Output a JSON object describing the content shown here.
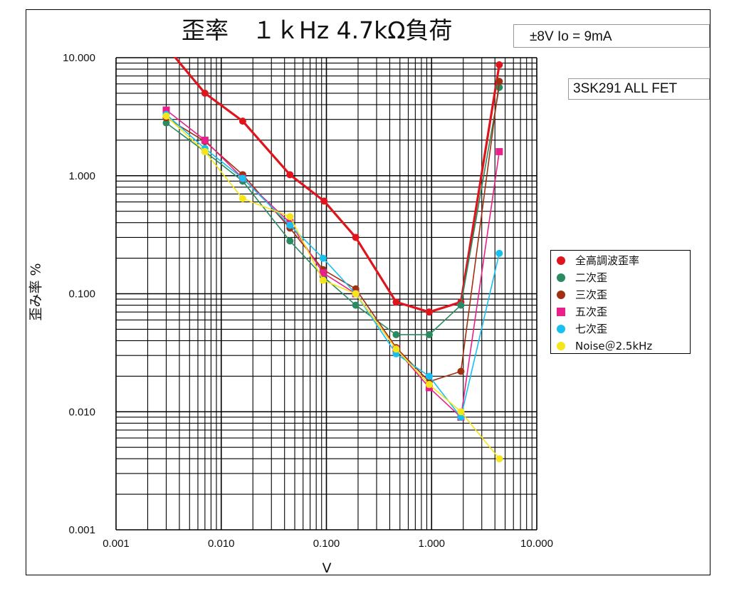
{
  "title": "歪率　１ｋHz 4.7kΩ負荷",
  "condition_label": "±8V  Io = 9mA",
  "device_label": "3SK291 ALL FET",
  "chart_data": {
    "type": "line",
    "title": "歪率　１ｋHz 4.7kΩ負荷",
    "xlabel": "V",
    "ylabel": "歪み率 %",
    "x_scale": "log",
    "y_scale": "log",
    "xlim": [
      0.001,
      10
    ],
    "ylim": [
      0.001,
      10
    ],
    "grid": true,
    "legend_position": "right",
    "x_ticks": [
      "0.001",
      "0.010",
      "0.100",
      "1.000",
      "10.000"
    ],
    "y_ticks": [
      "10.000",
      "1.000",
      "0.100",
      "0.010",
      "0.001"
    ],
    "series": [
      {
        "name": "全高調波歪率",
        "color": "#e0141c",
        "marker": "circle",
        "thick": true,
        "x": [
          0.0035,
          0.007,
          0.016,
          0.045,
          0.095,
          0.19,
          0.46,
          0.95,
          1.9,
          4.4
        ],
        "y": [
          10.5,
          5.0,
          2.9,
          1.02,
          0.61,
          0.3,
          0.085,
          0.07,
          0.085,
          8.7
        ]
      },
      {
        "name": "二次歪",
        "color": "#2a8a60",
        "marker": "circle",
        "x": [
          0.003,
          0.007,
          0.016,
          0.045,
          0.093,
          0.19,
          0.46,
          0.95,
          1.9,
          4.4
        ],
        "y": [
          2.8,
          1.6,
          0.9,
          0.28,
          0.14,
          0.08,
          0.045,
          0.045,
          0.08,
          5.6
        ]
      },
      {
        "name": "三次歪",
        "color": "#a03010",
        "marker": "circle",
        "x": [
          0.003,
          0.007,
          0.016,
          0.045,
          0.093,
          0.19,
          0.46,
          0.95,
          1.9,
          4.4
        ],
        "y": [
          3.1,
          1.95,
          1.02,
          0.36,
          0.16,
          0.11,
          0.035,
          0.018,
          0.022,
          6.3
        ]
      },
      {
        "name": "五次歪",
        "color": "#e8218a",
        "marker": "square",
        "x": [
          0.003,
          0.007,
          0.016,
          0.045,
          0.093,
          0.19,
          0.46,
          0.95,
          1.9,
          4.4
        ],
        "y": [
          3.6,
          2.0,
          0.95,
          0.4,
          0.15,
          0.1,
          0.034,
          0.016,
          0.009,
          1.6
        ]
      },
      {
        "name": "七次歪",
        "color": "#18c0f0",
        "marker": "circle",
        "x": [
          0.003,
          0.007,
          0.016,
          0.045,
          0.093,
          0.19,
          0.46,
          0.95,
          1.9,
          4.4
        ],
        "y": [
          3.3,
          1.7,
          0.95,
          0.38,
          0.2,
          0.1,
          0.031,
          0.02,
          0.009,
          0.22
        ]
      },
      {
        "name": "Noise＠2.5kHz",
        "color": "#f5e61a",
        "marker": "circle",
        "x": [
          0.003,
          0.007,
          0.016,
          0.045,
          0.093,
          0.19,
          0.46,
          0.95,
          1.9,
          4.4
        ],
        "y": [
          3.2,
          1.6,
          0.64,
          0.45,
          0.13,
          0.1,
          0.034,
          0.017,
          0.01,
          0.004
        ]
      }
    ]
  }
}
